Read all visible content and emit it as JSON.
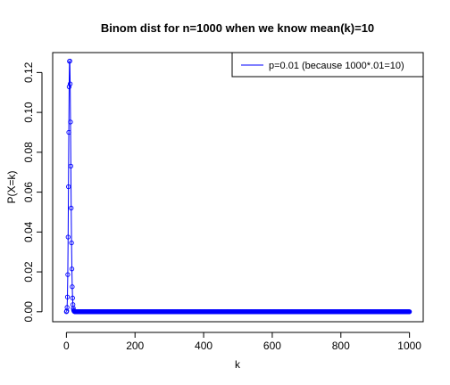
{
  "chart_data": {
    "type": "line",
    "title": "Binom dist for n=1000 when we know mean(k)=10",
    "xlabel": "k",
    "ylabel": "P(X=k)",
    "xlim": [
      0,
      1000
    ],
    "ylim": [
      0,
      0.125
    ],
    "xticks": [
      0,
      200,
      400,
      600,
      800,
      1000
    ],
    "yticks": [
      0.0,
      0.02,
      0.04,
      0.06,
      0.08,
      0.1,
      0.12
    ],
    "ytick_labels": [
      "0.00",
      "0.02",
      "0.04",
      "0.06",
      "0.08",
      "0.10",
      "0.12"
    ],
    "grid": false,
    "legend_position": "top-right",
    "series": [
      {
        "name": "p=0.01 (because 1000*.01=10)",
        "color": "#0000ff",
        "marker": "open-circle",
        "n": 1000,
        "p": 0.01,
        "x_range": [
          0,
          1000
        ],
        "note_values": "P(X=k) binomial probabilities, peak 0.1257 at k=10"
      }
    ]
  }
}
